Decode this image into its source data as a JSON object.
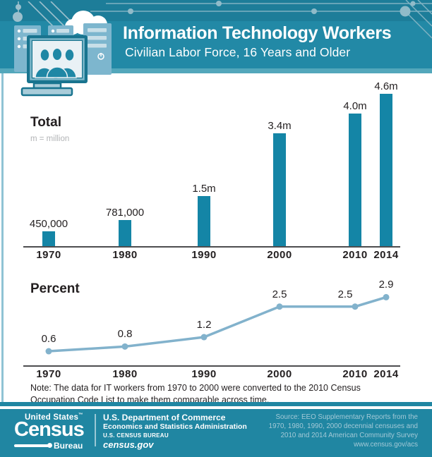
{
  "header": {
    "title": "Information Technology Workers",
    "subtitle": "Civilian Labor Force, 16 Years and Older"
  },
  "chart_data": [
    {
      "type": "bar",
      "title": "Total",
      "unit_note": "m = million",
      "categories": [
        "1970",
        "1980",
        "1990",
        "2000",
        "2010",
        "2014"
      ],
      "values": [
        450000,
        781000,
        1500000,
        3400000,
        4000000,
        4600000
      ],
      "value_labels": [
        "450,000",
        "781,000",
        "1.5m",
        "3.4m",
        "4.0m",
        "4.6m"
      ],
      "bar_color": "#1485a6",
      "axis": "x-axis only, baseline at 0, no gridlines",
      "x_note": "x positions proportional to year; 2014 close to 2010"
    },
    {
      "type": "line",
      "title": "Percent",
      "categories": [
        "1970",
        "1980",
        "1990",
        "2000",
        "2010",
        "2014"
      ],
      "values": [
        0.6,
        0.8,
        1.2,
        2.5,
        2.5,
        2.9
      ],
      "value_labels": [
        "0.6",
        "0.8",
        "1.2",
        "2.5",
        "2.5",
        "2.9"
      ],
      "line_color": "#82b2cc",
      "marker": "filled circle",
      "axis": "x-axis only, baseline at 0, no gridlines"
    }
  ],
  "note": "Note: The data for IT workers from 1970 to 2000 were converted to the 2010 Census Occupation Code List to make them comparable across time.",
  "footer": {
    "logo": {
      "top": "United States",
      "tm": "™",
      "main": "Census",
      "sub": "Bureau"
    },
    "commerce": {
      "line1": "U.S. Department of Commerce",
      "line2": "Economics and Statistics Administration",
      "line3": "U.S. CENSUS BUREAU",
      "line4": "census.gov"
    },
    "source_lines": [
      "Source: EEO Supplementary Reports from the",
      "1970, 1980, 1990, 2000 decennial censuses and",
      "2010 and 2014 American Community Survey",
      "www.census.gov/acs"
    ]
  },
  "colors": {
    "header_top_strip": "#1d7d99",
    "header_main": "#2289a6",
    "header_bottom_strip": "#53a7bb",
    "footer_background": "#2086a2",
    "bar": "#1485a6",
    "line": "#82b2cc",
    "left_border": "#8fc3d4",
    "muted_gray_text": "#b2b4b6",
    "source_text": "#a3c9d7"
  }
}
